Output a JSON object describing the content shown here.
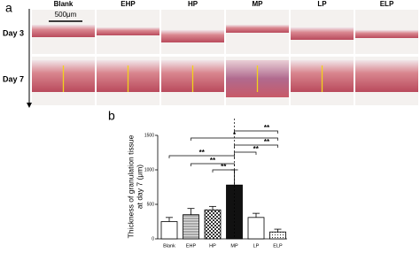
{
  "panel_a": {
    "label": "a",
    "scale_bar": "500μm",
    "columns": [
      "Blank",
      "EHP",
      "HP",
      "MP",
      "LP",
      "ELP"
    ],
    "rows": [
      "Day 3",
      "Day 7"
    ]
  },
  "chart_data": {
    "type": "bar",
    "panel_label": "b",
    "y_label": [
      "Thickness of granulation tissue",
      "at day 7 (μm)"
    ],
    "categories": [
      "Blank",
      "EHP",
      "HP",
      "MP",
      "LP",
      "ELP"
    ],
    "values": [
      250,
      350,
      420,
      780,
      310,
      100
    ],
    "errors": [
      60,
      90,
      50,
      220,
      60,
      40
    ],
    "ylim": [
      0,
      1500
    ],
    "yticks": [
      0,
      500,
      1000,
      1500
    ],
    "annotations": [
      "**",
      "*",
      "**",
      "**",
      "**",
      "**",
      "**"
    ]
  }
}
